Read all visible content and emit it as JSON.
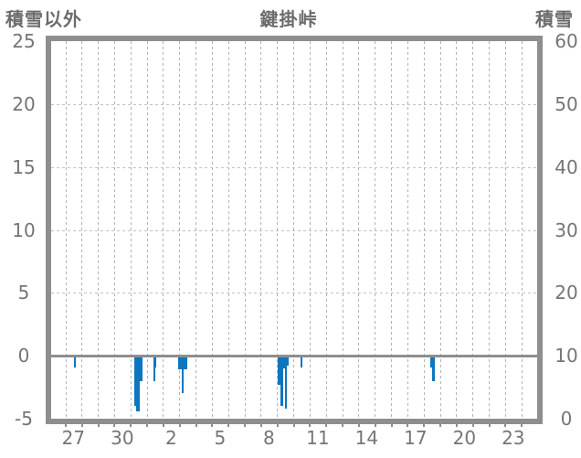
{
  "header": {
    "left_label": "積雪以外",
    "title": "鍵掛峠",
    "right_label": "積雪"
  },
  "colors": {
    "bar": "#0e76be",
    "frame": "#8e8e8e",
    "grid_vertical": "#b3b3b3",
    "grid_horizontal": "#c2c2c2",
    "tick_text": "#757575",
    "header_text": "#6b6b6b"
  },
  "chart_data": {
    "type": "bar",
    "title": "鍵掛峠",
    "left_axis": {
      "label": "積雪以外",
      "tick_labels": [
        "25",
        "20",
        "15",
        "10",
        "5",
        "0",
        "-5"
      ],
      "range": [
        -5,
        25
      ]
    },
    "right_axis": {
      "label": "積雪",
      "tick_labels": [
        "60",
        "50",
        "40",
        "30",
        "20",
        "10",
        "0"
      ],
      "range": [
        0,
        60
      ]
    },
    "x_axis": {
      "tick_labels": [
        "27",
        "30",
        "2",
        "5",
        "8",
        "11",
        "14",
        "17",
        "20",
        "23"
      ],
      "tick_step_days": 3,
      "first_tick_center_day": 0.5,
      "visible_days": 30,
      "grid": "daily-dashed"
    },
    "grid": {
      "h_values": [
        20,
        15,
        10,
        5
      ],
      "zero_line": true
    },
    "legend": "none",
    "bars": [
      {
        "day": "27",
        "t": 0.53,
        "dur": 0.14,
        "value": -0.9
      },
      {
        "day": "31",
        "t": 4.22,
        "dur": 0.13,
        "value": -4.0
      },
      {
        "day": "31",
        "t": 4.35,
        "dur": 0.21,
        "value": -4.4
      },
      {
        "day": "31",
        "t": 4.56,
        "dur": 0.18,
        "value": -2.0
      },
      {
        "day": "1",
        "t": 5.4,
        "dur": 0.1,
        "value": -2.0
      },
      {
        "day": "1",
        "t": 5.5,
        "dur": 0.1,
        "value": -0.9
      },
      {
        "day": "2",
        "t": 6.92,
        "dur": 0.22,
        "value": -1.1
      },
      {
        "day": "3",
        "t": 7.14,
        "dur": 0.15,
        "value": -3.0
      },
      {
        "day": "3",
        "t": 7.29,
        "dur": 0.18,
        "value": -1.1
      },
      {
        "day": "9",
        "t": 13.04,
        "dur": 0.17,
        "value": -2.3
      },
      {
        "day": "9",
        "t": 13.21,
        "dur": 0.17,
        "value": -4.0
      },
      {
        "day": "9",
        "t": 13.38,
        "dur": 0.11,
        "value": -1.0
      },
      {
        "day": "9",
        "t": 13.49,
        "dur": 0.13,
        "value": -4.2
      },
      {
        "day": "9",
        "t": 13.62,
        "dur": 0.07,
        "value": -0.8
      },
      {
        "day": "10",
        "t": 14.44,
        "dur": 0.11,
        "value": -0.9
      },
      {
        "day": "18",
        "t": 22.43,
        "dur": 0.25,
        "value": -0.9
      },
      {
        "day": "18",
        "t": 22.52,
        "dur": 0.14,
        "value": -2.0
      }
    ]
  }
}
